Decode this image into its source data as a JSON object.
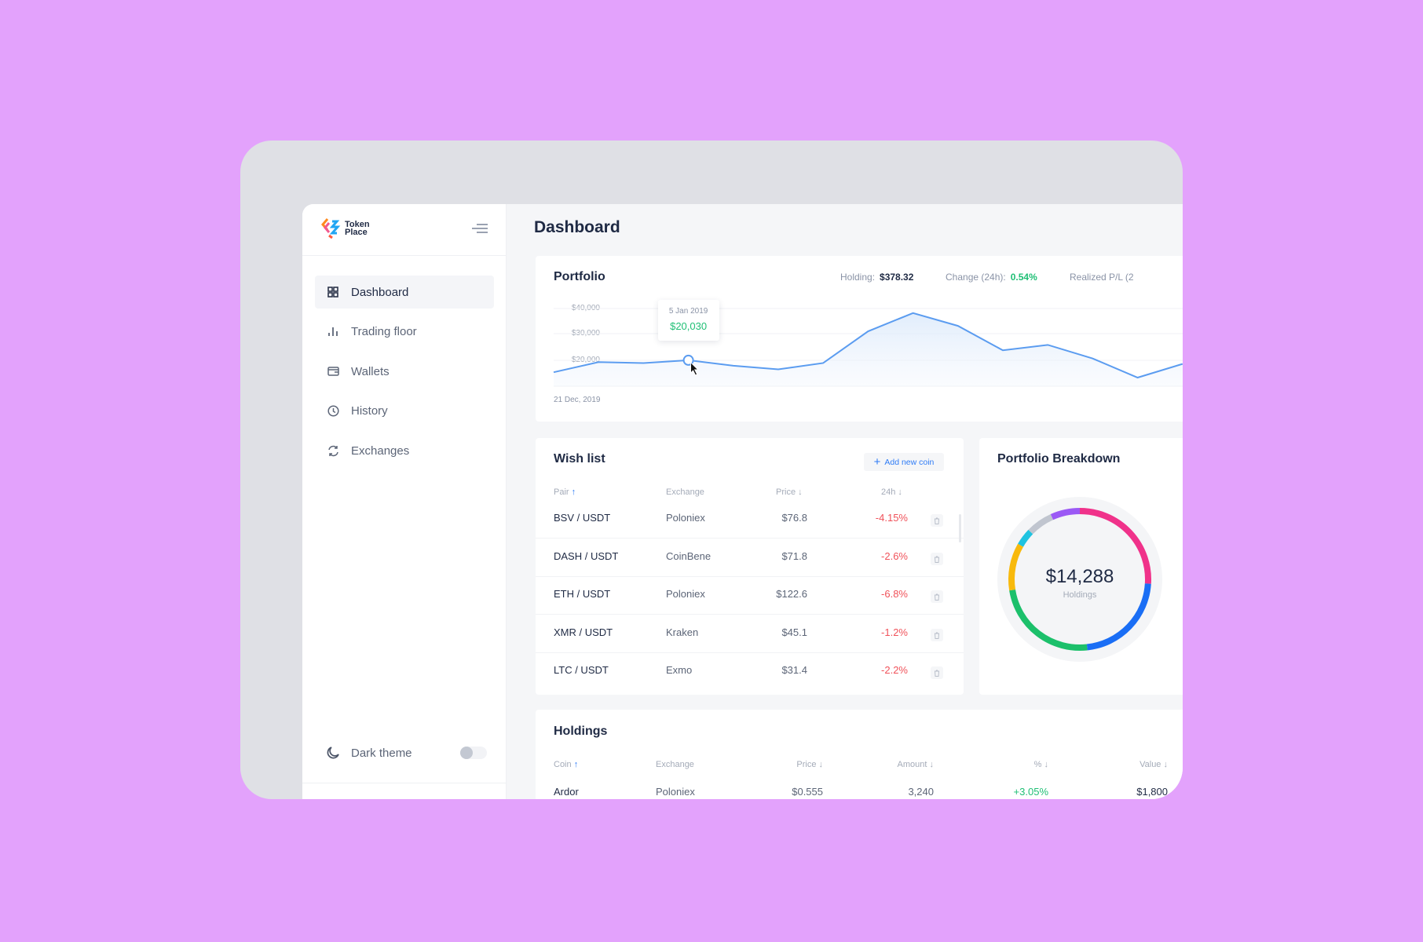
{
  "brand": {
    "name_line1": "Token",
    "name_line2": "Place"
  },
  "sidebar": {
    "items": [
      {
        "label": "Dashboard",
        "icon": "grid-icon",
        "active": true
      },
      {
        "label": "Trading floor",
        "icon": "bar-chart-icon"
      },
      {
        "label": "Wallets",
        "icon": "wallet-icon"
      },
      {
        "label": "History",
        "icon": "clock-icon"
      },
      {
        "label": "Exchanges",
        "icon": "refresh-icon"
      }
    ],
    "dark_theme_label": "Dark theme",
    "dark_theme_on": false
  },
  "header": {
    "title": "Dashboard"
  },
  "portfolio": {
    "title": "Portfolio",
    "holding_label": "Holding:",
    "holding_value": "$378.32",
    "change_label": "Change (24h):",
    "change_value": "0.54%",
    "realized_label": "Realized P/L (2",
    "tooltip": {
      "date": "5 Jan 2019",
      "value": "$20,030"
    },
    "date_label": "21 Dec, 2019"
  },
  "chart_data": {
    "type": "area",
    "y_ticks": [
      "$40,000",
      "$30,000",
      "$20,000"
    ],
    "ylim": [
      10000,
      40000
    ],
    "grid": true,
    "values": [
      15400,
      19300,
      18950,
      20030,
      17900,
      16500,
      18950,
      31200,
      38250,
      33300,
      23860,
      25960,
      20700,
      13330,
      18600
    ],
    "highlight_index": 3,
    "line_color": "#5b9cf0"
  },
  "wishlist": {
    "title": "Wish list",
    "add_label": "Add new coin",
    "columns": [
      "Pair",
      "Exchange",
      "Price",
      "24h"
    ],
    "rows": [
      {
        "pair": "BSV / USDT",
        "exchange": "Poloniex",
        "price": "$76.8",
        "change": "-4.15%"
      },
      {
        "pair": "DASH / USDT",
        "exchange": "CoinBene",
        "price": "$71.8",
        "change": "-2.6%"
      },
      {
        "pair": "ETH / USDT",
        "exchange": "Poloniex",
        "price": "$122.6",
        "change": "-6.8%"
      },
      {
        "pair": "XMR / USDT",
        "exchange": "Kraken",
        "price": "$45.1",
        "change": "-1.2%"
      },
      {
        "pair": "LTC / USDT",
        "exchange": "Exmo",
        "price": "$31.4",
        "change": "-2.2%"
      }
    ]
  },
  "breakdown": {
    "title": "Portfolio Breakdown",
    "total": "$14,288",
    "caption": "Holdings",
    "segments": [
      {
        "percent": 26,
        "color": "#f0328a"
      },
      {
        "percent": 22.3,
        "color": "#1a6ef5"
      },
      {
        "percent": 24.2,
        "color": "#1cc06b"
      },
      {
        "percent": 10.8,
        "color": "#f8b90c"
      },
      {
        "percent": 3.9,
        "color": "#1fc3e0"
      },
      {
        "percent": 6.1,
        "color": "#c0c5cf"
      },
      {
        "percent": 6.7,
        "color": "#9b59f5"
      }
    ]
  },
  "holdings": {
    "title": "Holdings",
    "columns": [
      "Coin",
      "Exchange",
      "Price",
      "Amount",
      "%",
      "Value"
    ],
    "rows": [
      {
        "coin": "Ardor",
        "exchange": "Poloniex",
        "price": "$0.555",
        "amount": "3,240",
        "percent": "+3.05%",
        "value": "$1,800"
      }
    ]
  },
  "colors": {
    "green": "#1fbf75",
    "red": "#f0525a",
    "blue": "#2f7cf6",
    "background": "#e3a2fc"
  }
}
